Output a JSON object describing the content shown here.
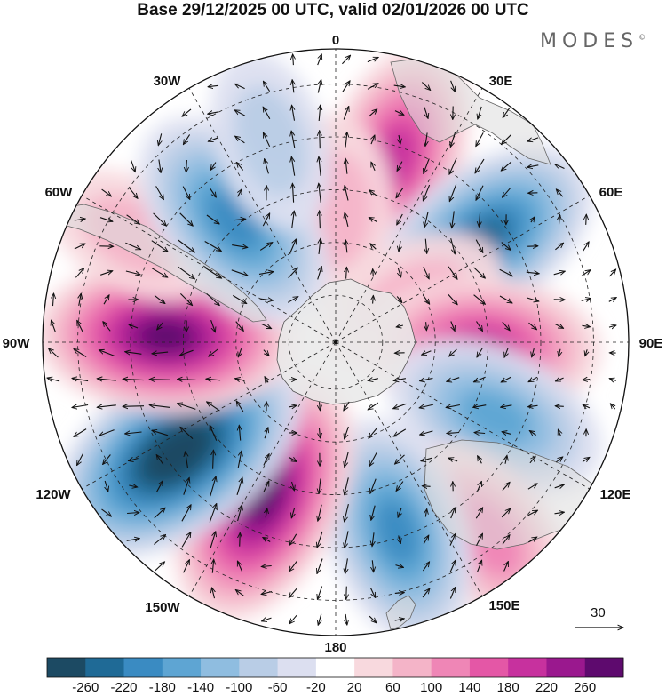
{
  "title": "Base 29/12/2025 00 UTC, valid 02/01/2026 00 UTC",
  "brand": "MODES",
  "brand_mark": "©",
  "longitude_labels": [
    "0",
    "30E",
    "60E",
    "90E",
    "120E",
    "150E",
    "180",
    "150W",
    "120W",
    "90W",
    "60W",
    "30W"
  ],
  "vector_scale": {
    "label": "30"
  },
  "colorbar": {
    "labels": [
      "-260",
      "-220",
      "-180",
      "-140",
      "-100",
      "-60",
      "-20",
      "20",
      "60",
      "100",
      "140",
      "180",
      "220",
      "260"
    ],
    "colors": [
      "#1c4a63",
      "#1f6a96",
      "#3a8bc2",
      "#5ea5d3",
      "#8fbde0",
      "#b9cde6",
      "#dcdff0",
      "#ffffff",
      "#f8d9de",
      "#f4b4c8",
      "#ef86b6",
      "#e457a6",
      "#c7319e",
      "#9a188e",
      "#5e0a6e"
    ]
  },
  "anomaly_centers": [
    {
      "lon": 18,
      "dist": 0.66,
      "value": 160
    },
    {
      "lon": 0,
      "dist": 0.45,
      "value": 60
    },
    {
      "lon": 55,
      "dist": 0.62,
      "value": -200
    },
    {
      "lon": 62,
      "dist": 0.3,
      "value": 60
    },
    {
      "lon": 92,
      "dist": 0.5,
      "value": 180
    },
    {
      "lon": 115,
      "dist": 0.6,
      "value": -150
    },
    {
      "lon": 142,
      "dist": 0.84,
      "value": 110
    },
    {
      "lon": 162,
      "dist": 0.68,
      "value": -170
    },
    {
      "lon": -155,
      "dist": 0.58,
      "value": 250
    },
    {
      "lon": -125,
      "dist": 0.66,
      "value": -290
    },
    {
      "lon": -88,
      "dist": 0.58,
      "value": 240
    },
    {
      "lon": -62,
      "dist": 0.78,
      "value": 40
    },
    {
      "lon": -40,
      "dist": 0.54,
      "value": -190
    },
    {
      "lon": -18,
      "dist": 0.72,
      "value": -40
    }
  ]
}
